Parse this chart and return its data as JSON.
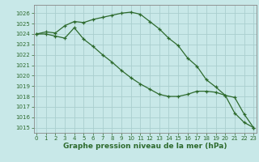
{
  "line1_x": [
    0,
    1,
    2,
    3,
    4,
    5,
    6,
    7,
    8,
    9,
    10,
    11,
    12,
    13,
    14,
    15,
    16,
    17,
    18,
    19,
    20,
    21,
    22,
    23
  ],
  "line1_y": [
    1024.0,
    1024.2,
    1024.1,
    1024.8,
    1025.2,
    1025.1,
    1025.4,
    1025.6,
    1025.8,
    1026.0,
    1026.1,
    1025.9,
    1025.2,
    1024.5,
    1023.6,
    1022.9,
    1021.7,
    1020.9,
    1019.6,
    1018.9,
    1018.1,
    1017.9,
    1016.3,
    1015.0
  ],
  "line2_x": [
    0,
    1,
    2,
    3,
    4,
    5,
    6,
    7,
    8,
    9,
    10,
    11,
    12,
    13,
    14,
    15,
    16,
    17,
    18,
    19,
    20,
    21,
    22,
    23
  ],
  "line2_y": [
    1024.0,
    1024.0,
    1023.8,
    1023.6,
    1024.6,
    1023.5,
    1022.8,
    1022.0,
    1021.3,
    1020.5,
    1019.8,
    1019.2,
    1018.7,
    1018.2,
    1018.0,
    1018.0,
    1018.2,
    1018.5,
    1018.5,
    1018.4,
    1018.1,
    1016.4,
    1015.5,
    1015.0
  ],
  "line_color": "#2d6a2d",
  "marker": "+",
  "markersize": 3,
  "linewidth": 0.9,
  "markeredgewidth": 0.9,
  "bg_color": "#c8e8e8",
  "grid_color": "#aacece",
  "xlabel": "Graphe pression niveau de la mer (hPa)",
  "xlabel_fontsize": 6.5,
  "xlabel_bold": true,
  "ylim": [
    1014.5,
    1026.8
  ],
  "xlim": [
    -0.3,
    23.3
  ],
  "yticks": [
    1015,
    1016,
    1017,
    1018,
    1019,
    1020,
    1021,
    1022,
    1023,
    1024,
    1025,
    1026
  ],
  "xticks": [
    0,
    1,
    2,
    3,
    4,
    5,
    6,
    7,
    8,
    9,
    10,
    11,
    12,
    13,
    14,
    15,
    16,
    17,
    18,
    19,
    20,
    21,
    22,
    23
  ],
  "tick_fontsize": 5.0
}
